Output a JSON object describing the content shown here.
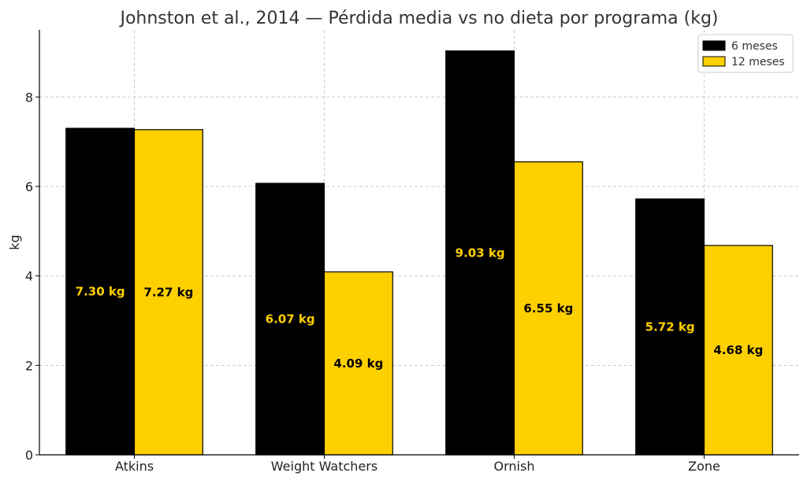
{
  "chart_data": {
    "type": "bar",
    "title": "Johnston et al., 2014 — Pérdida media vs no dieta por programa (kg)",
    "xlabel": "",
    "ylabel": "kg",
    "categories": [
      "Atkins",
      "Weight Watchers",
      "Ornish",
      "Zone"
    ],
    "series": [
      {
        "name": "6 meses",
        "color": "#000000",
        "label_color": "#FFD000",
        "values": [
          7.3,
          6.07,
          9.03,
          5.72
        ],
        "labels": [
          "7.30 kg",
          "6.07 kg",
          "9.03 kg",
          "5.72 kg"
        ]
      },
      {
        "name": "12 meses",
        "color": "#FFD000",
        "label_color": "#000000",
        "values": [
          7.27,
          4.09,
          6.55,
          4.68
        ],
        "labels": [
          "7.27 kg",
          "4.09 kg",
          "6.55 kg",
          "4.68 kg"
        ]
      }
    ],
    "ylim": [
      0,
      9.5
    ],
    "yticks": [
      0,
      2,
      4,
      6,
      8
    ],
    "yticklabels": [
      "0",
      "2",
      "4",
      "6",
      "8"
    ],
    "grid": true,
    "legend_position": "top-right"
  }
}
